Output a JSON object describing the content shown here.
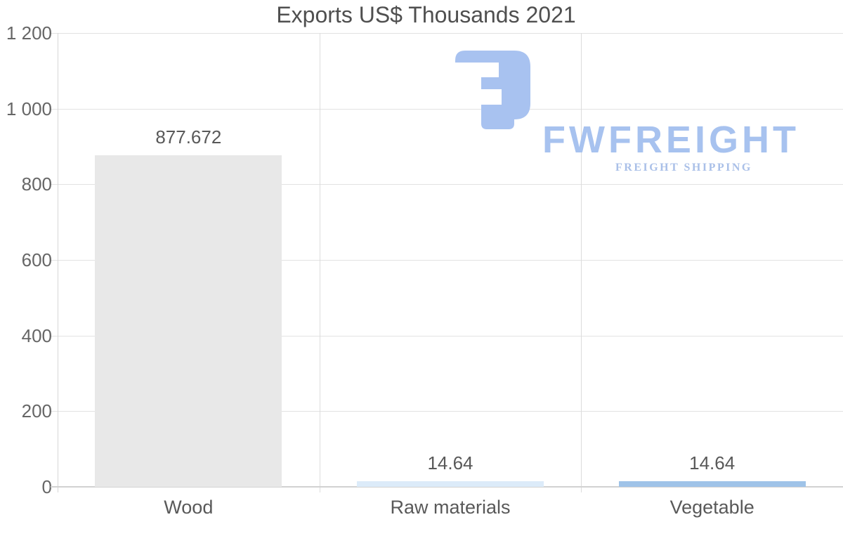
{
  "title": "Exports US$ Thousands 2021",
  "watermark": {
    "brand": "FWFREIGHT",
    "tagline": "FREIGHT SHIPPING",
    "brand_color": "#a7c2ef",
    "tagline_color": "#aac0e8",
    "glyph_color": "#a8c2f0"
  },
  "chart_data": {
    "type": "bar",
    "title": "Exports US$ Thousands 2021",
    "categories": [
      "Wood",
      "Raw materials",
      "Vegetable"
    ],
    "values": [
      877.672,
      14.64,
      14.64
    ],
    "value_labels": [
      "877.672",
      "14.64",
      "14.64"
    ],
    "bar_colors": [
      "#e8e8e8",
      "#dcebf9",
      "#9fc3e8"
    ],
    "ylim": [
      0,
      1200
    ],
    "yticks": [
      {
        "value": 1200,
        "label": "1 200"
      },
      {
        "value": 1000,
        "label": "1 000"
      },
      {
        "value": 800,
        "label": "800"
      },
      {
        "value": 600,
        "label": "600"
      },
      {
        "value": 400,
        "label": "400"
      },
      {
        "value": 200,
        "label": "200"
      },
      {
        "value": 0,
        "label": "0"
      }
    ],
    "xlabel": "",
    "ylabel": "",
    "legend": "none",
    "grid": "horizontal gridlines with left ticks, vertical category separators extending below baseline"
  },
  "colors": {
    "grid": "#e2e2e2",
    "separator": "#dcdcdc",
    "axis": "#d6d6d6",
    "baseline": "#d2d2d2",
    "tick_text": "#666666",
    "label_text": "#595959",
    "title_text": "#4f4f4f",
    "background": "#ffffff"
  }
}
